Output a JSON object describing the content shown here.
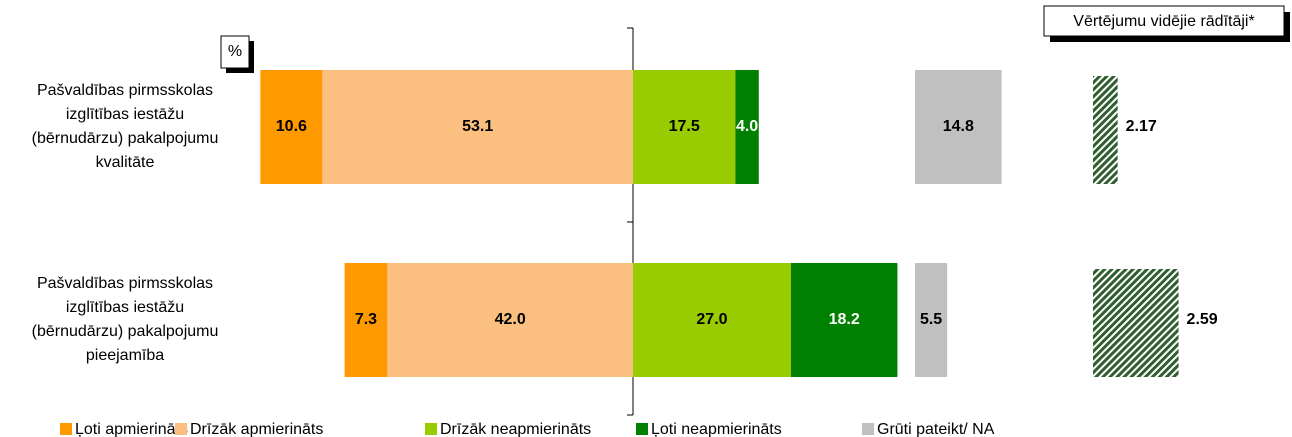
{
  "chart_data": {
    "type": "diverging-bar",
    "unit_label": "%",
    "categories": [
      "Pašvaldības pirmsskolas izglītības iestāžu (bērnudārzu) pakalpojumu kvalitāte",
      "Pašvaldības pirmsskolas izglītības iestāžu (bērnudārzu) pakalpojumu pieejamība"
    ],
    "series": [
      {
        "name": "Ļoti apmierināts",
        "color": "#ff9900",
        "side": "left",
        "values": [
          10.6,
          7.3
        ]
      },
      {
        "name": "Drīzāk apmierināts",
        "color": "#fbbf80",
        "side": "left",
        "values": [
          53.1,
          42.0
        ],
        "value_labels": [
          "53.1",
          "42.0"
        ]
      },
      {
        "name": "Drīzāk neapmierināts",
        "color": "#99cc00",
        "side": "right",
        "values": [
          17.5,
          27.0
        ],
        "value_labels": [
          "17.5",
          "27.0"
        ]
      },
      {
        "name": "Ļoti neapmierināts",
        "color": "#008000",
        "side": "right",
        "values": [
          4.0,
          18.2
        ],
        "value_labels": [
          "4.0",
          "18.2"
        ]
      },
      {
        "name": "Grūti pateikt/ NA",
        "color": "#c0c0c0",
        "side": "na",
        "values": [
          14.8,
          5.5
        ]
      }
    ],
    "means": {
      "title": "Vērtējumu vidējie rādītāji*",
      "color": "#2f5f2f",
      "values": [
        2.17,
        2.59
      ]
    }
  }
}
